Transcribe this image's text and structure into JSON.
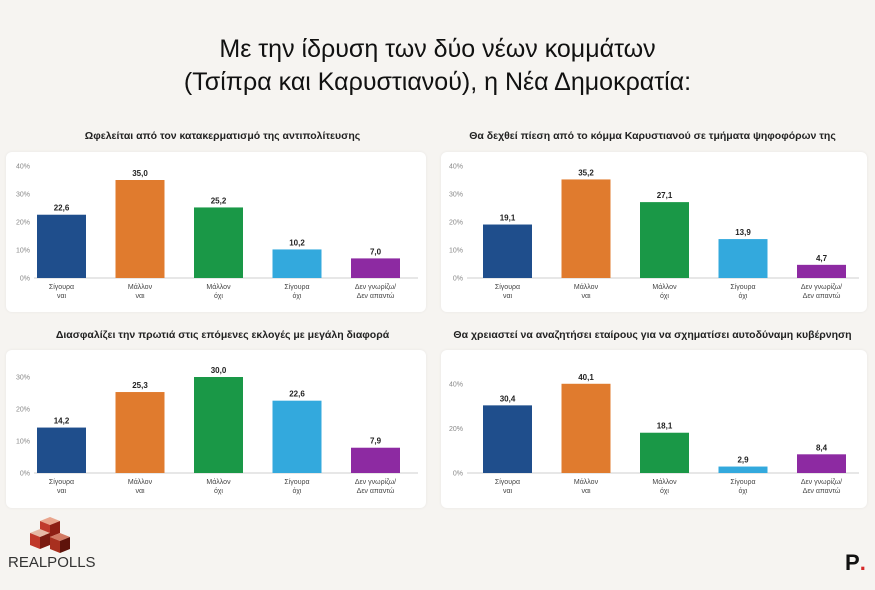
{
  "title": {
    "line1": "Με την ίδρυση των δύο νέων κομμάτων",
    "line2": "(Τσίπρα και Καρυστιανού), η Νέα Δημοκρατία:"
  },
  "logos": {
    "left": "REALPOLLS",
    "right": "P"
  },
  "colors": [
    "#1f4e8c",
    "#e07b2e",
    "#1a9847",
    "#33a9dd",
    "#8d2aa2"
  ],
  "chart_data": [
    {
      "type": "bar",
      "title": "Ωφελείται από τον κατακερματισμό της αντιπολίτευσης",
      "categories": [
        [
          "Σίγουρα",
          "ναι"
        ],
        [
          "Μάλλον",
          "ναι"
        ],
        [
          "Μάλλον",
          "όχι"
        ],
        [
          "Σίγουρα",
          "όχι"
        ],
        [
          "Δεν γνωρίζω/",
          "Δεν απαντώ"
        ]
      ],
      "values": [
        22.6,
        35.0,
        25.2,
        10.2,
        7.0
      ],
      "labels": [
        "22,6",
        "35,0",
        "25,2",
        "10,2",
        "7,0"
      ],
      "ylim": [
        0,
        40
      ],
      "yticks": [
        0,
        10,
        20,
        30,
        40
      ],
      "ytick_labels": [
        "0%",
        "10%",
        "20%",
        "30%",
        "40%"
      ],
      "grid": false
    },
    {
      "type": "bar",
      "title": "Θα δεχθεί πίεση από το κόμμα Καρυστιανού σε τμήματα ψηφοφόρων της",
      "categories": [
        [
          "Σίγουρα",
          "ναι"
        ],
        [
          "Μάλλον",
          "ναι"
        ],
        [
          "Μάλλον",
          "όχι"
        ],
        [
          "Σίγουρα",
          "όχι"
        ],
        [
          "Δεν γνωρίζω/",
          "Δεν απαντώ"
        ]
      ],
      "values": [
        19.1,
        35.2,
        27.1,
        13.9,
        4.7
      ],
      "labels": [
        "19,1",
        "35,2",
        "27,1",
        "13,9",
        "4,7"
      ],
      "ylim": [
        0,
        40
      ],
      "yticks": [
        0,
        10,
        20,
        30,
        40
      ],
      "ytick_labels": [
        "0%",
        "10%",
        "20%",
        "30%",
        "40%"
      ],
      "grid": false
    },
    {
      "type": "bar",
      "title": "Διασφαλίζει την πρωτιά στις επόμενες εκλογές με μεγάλη διαφορά",
      "categories": [
        [
          "Σίγουρα",
          "ναι"
        ],
        [
          "Μάλλον",
          "ναι"
        ],
        [
          "Μάλλον",
          "όχι"
        ],
        [
          "Σίγουρα",
          "όχι"
        ],
        [
          "Δεν γνωρίζω/",
          "Δεν απαντώ"
        ]
      ],
      "values": [
        14.2,
        25.3,
        30.0,
        22.6,
        7.9
      ],
      "labels": [
        "14,2",
        "25,3",
        "30,0",
        "22,6",
        "7,9"
      ],
      "ylim": [
        0,
        30
      ],
      "yticks": [
        0,
        10,
        20,
        30
      ],
      "ytick_labels": [
        "0%",
        "10%",
        "20%",
        "30%"
      ],
      "grid": false
    },
    {
      "type": "bar",
      "title": "Θα χρειαστεί να αναζητήσει εταίρους για να σχηματίσει αυτοδύναμη κυβέρνηση",
      "categories": [
        [
          "Σίγουρα",
          "ναι"
        ],
        [
          "Μάλλον",
          "ναι"
        ],
        [
          "Μάλλον",
          "όχι"
        ],
        [
          "Σίγουρα",
          "όχι"
        ],
        [
          "Δεν γνωρίζω/",
          "Δεν απαντώ"
        ]
      ],
      "values": [
        30.4,
        40.1,
        18.1,
        2.9,
        8.4
      ],
      "labels": [
        "30,4",
        "40,1",
        "18,1",
        "2,9",
        "8,4"
      ],
      "ylim": [
        0,
        40
      ],
      "yticks": [
        0,
        20,
        40
      ],
      "ytick_labels": [
        "0%",
        "20%",
        "40%"
      ],
      "grid": false
    }
  ]
}
